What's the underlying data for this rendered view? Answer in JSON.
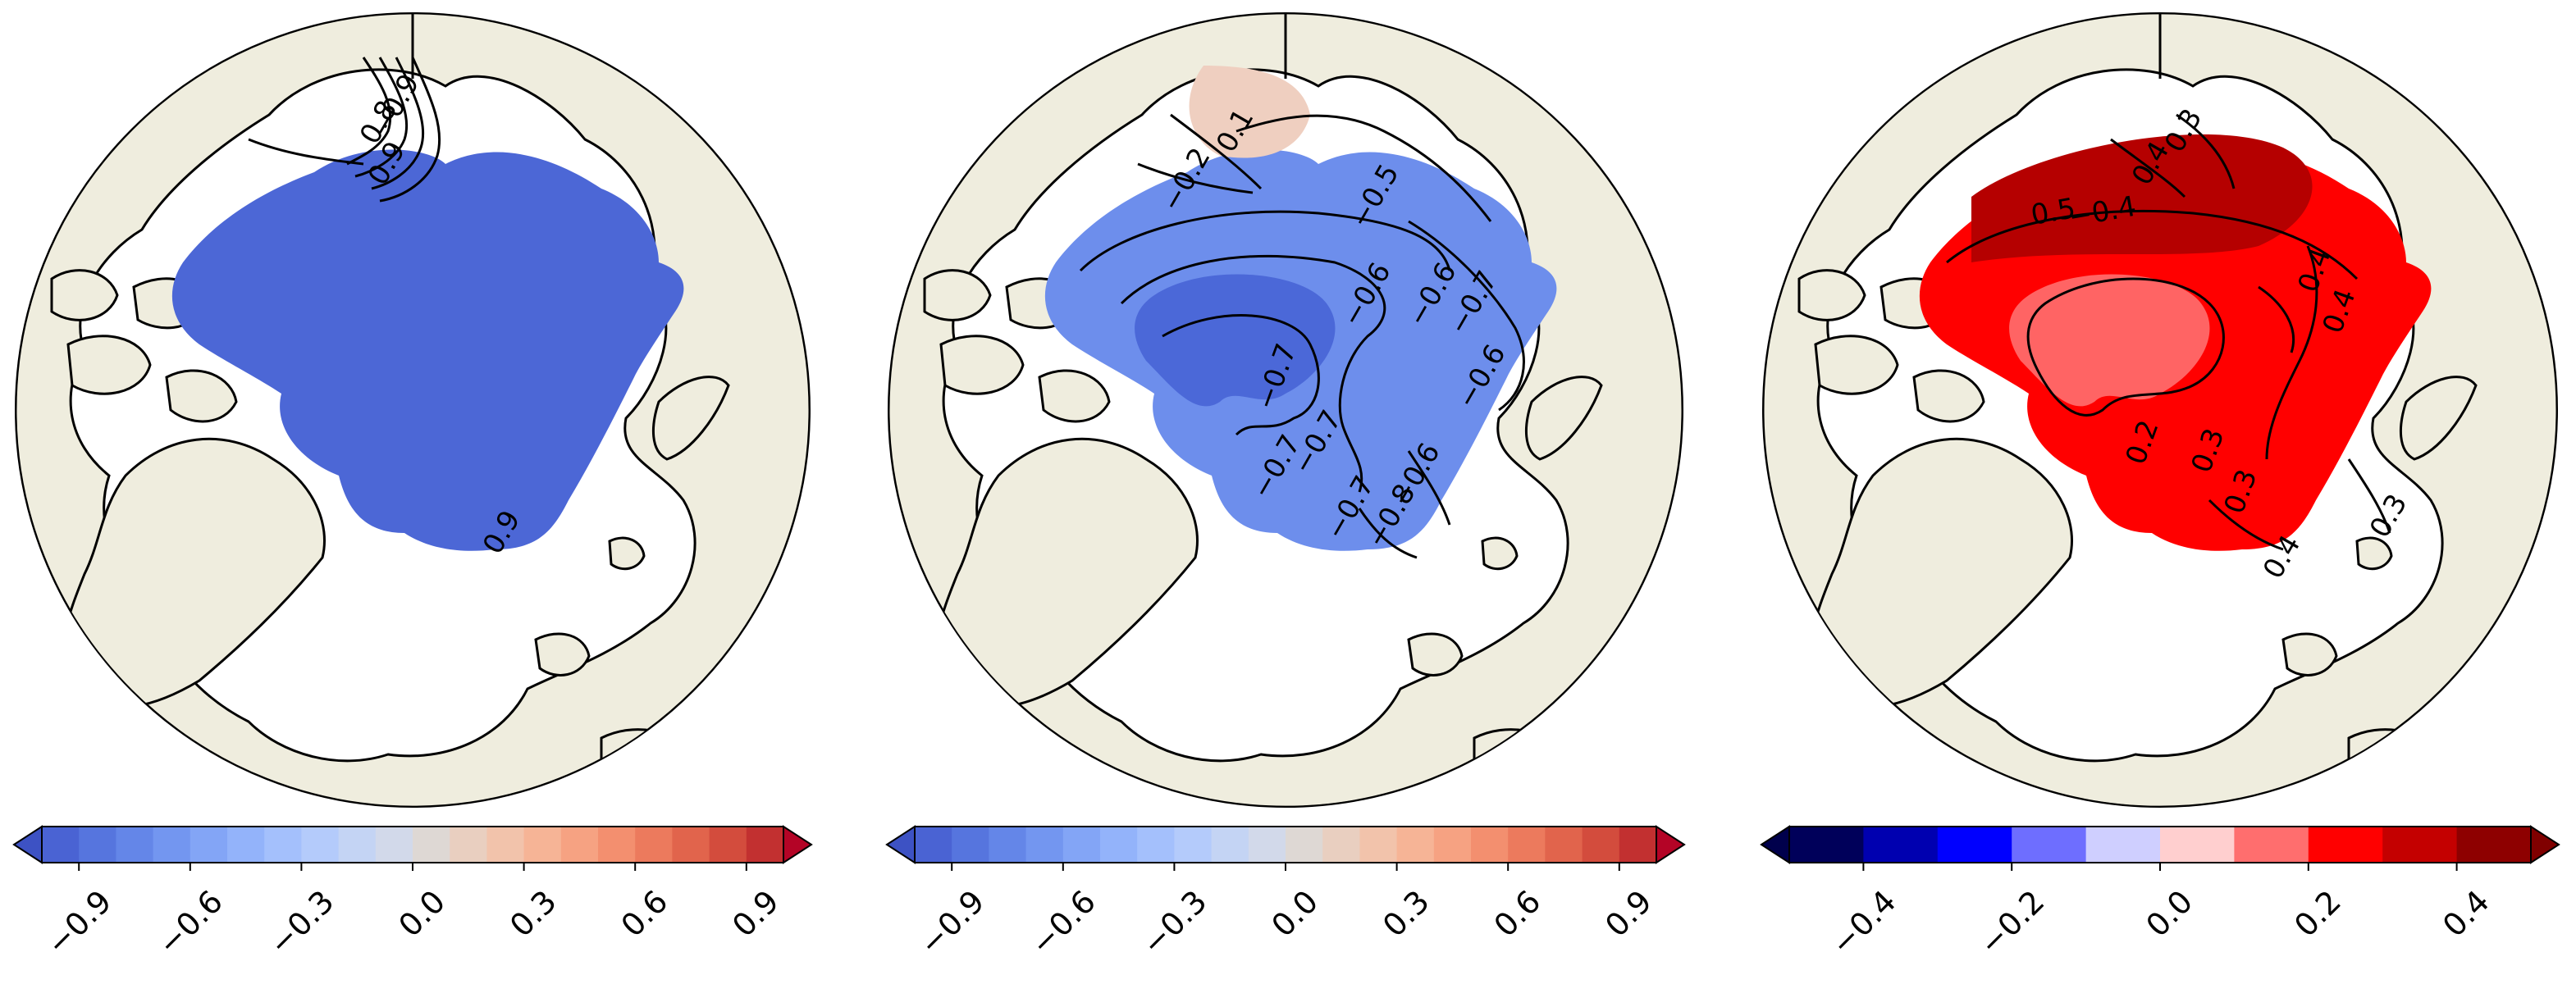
{
  "colors": {
    "land": "#efedde",
    "ocean": "#ffffff",
    "coastline": "#000000",
    "contour": "#000000"
  },
  "panels": [
    {
      "colormap": "coolwarm",
      "filled_field": "#4c67d6",
      "colorbar": {
        "tick_labels": [
          "−0.9",
          "−0.6",
          "−0.3",
          "0.0",
          "0.3",
          "0.6",
          "0.9"
        ],
        "ticks": [
          -0.9,
          -0.6,
          -0.3,
          0.0,
          0.3,
          0.6,
          0.9
        ],
        "range": [
          -1.0,
          1.0
        ],
        "extend": "both",
        "colors": [
          "#4a63d3",
          "#5675de",
          "#6486e8",
          "#7396f0",
          "#83a5f6",
          "#93b3fa",
          "#a4c0fc",
          "#b4cbfb",
          "#c4d4f4",
          "#d2d9ea",
          "#ded8d4",
          "#e9cfc0",
          "#f2c3ab",
          "#f6b496",
          "#f6a282",
          "#f38f6f",
          "#ec7a5d",
          "#e1644c",
          "#d34c3d",
          "#c23030"
        ],
        "under_color": "#3d52c4",
        "over_color": "#b40426"
      },
      "contour_labels": [
        "0.8",
        "0.9",
        "−0.9",
        "0.9"
      ]
    },
    {
      "colormap": "coolwarm",
      "filled_field": "#6d8eec",
      "colorbar": {
        "tick_labels": [
          "−0.9",
          "−0.6",
          "−0.3",
          "0.0",
          "0.3",
          "0.6",
          "0.9"
        ],
        "ticks": [
          -0.9,
          -0.6,
          -0.3,
          0.0,
          0.3,
          0.6,
          0.9
        ],
        "range": [
          -1.0,
          1.0
        ],
        "extend": "both",
        "colors": [
          "#4a63d3",
          "#5675de",
          "#6486e8",
          "#7396f0",
          "#83a5f6",
          "#93b3fa",
          "#a4c0fc",
          "#b4cbfb",
          "#c4d4f4",
          "#d2d9ea",
          "#ded8d4",
          "#e9cfc0",
          "#f2c3ab",
          "#f6b496",
          "#f6a282",
          "#f38f6f",
          "#ec7a5d",
          "#e1644c",
          "#d34c3d",
          "#c23030"
        ],
        "under_color": "#3d52c4",
        "over_color": "#b40426"
      },
      "contour_labels": [
        "−0.5",
        "−0.6",
        "−0.7",
        "0.1",
        "−0.2",
        "−0.6",
        "−0.7",
        "−0.7",
        "−0.6",
        "−0.7",
        "−0.8",
        "−0.6",
        "−0.7"
      ]
    },
    {
      "colormap": "seismic",
      "filled_field": "#ff0000",
      "colorbar": {
        "tick_labels": [
          "−0.4",
          "−0.2",
          "0.0",
          "0.2",
          "0.4"
        ],
        "ticks": [
          -0.4,
          -0.2,
          0.0,
          0.2,
          0.4
        ],
        "range": [
          -0.5,
          0.5
        ],
        "extend": "both",
        "colors": [
          "#00005a",
          "#0000b0",
          "#0000ff",
          "#6e6eff",
          "#cfcfff",
          "#ffcfcf",
          "#ff6e6e",
          "#ff0000",
          "#c40000",
          "#8e0000"
        ],
        "under_color": "#00004c",
        "over_color": "#800000"
      },
      "contour_labels": [
        "0.3",
        "0.4",
        "0.5",
        "−0.4",
        "0.4",
        "0.2",
        "0.3",
        "0.3",
        "0.4",
        "0.4",
        "0.3"
      ]
    }
  ]
}
